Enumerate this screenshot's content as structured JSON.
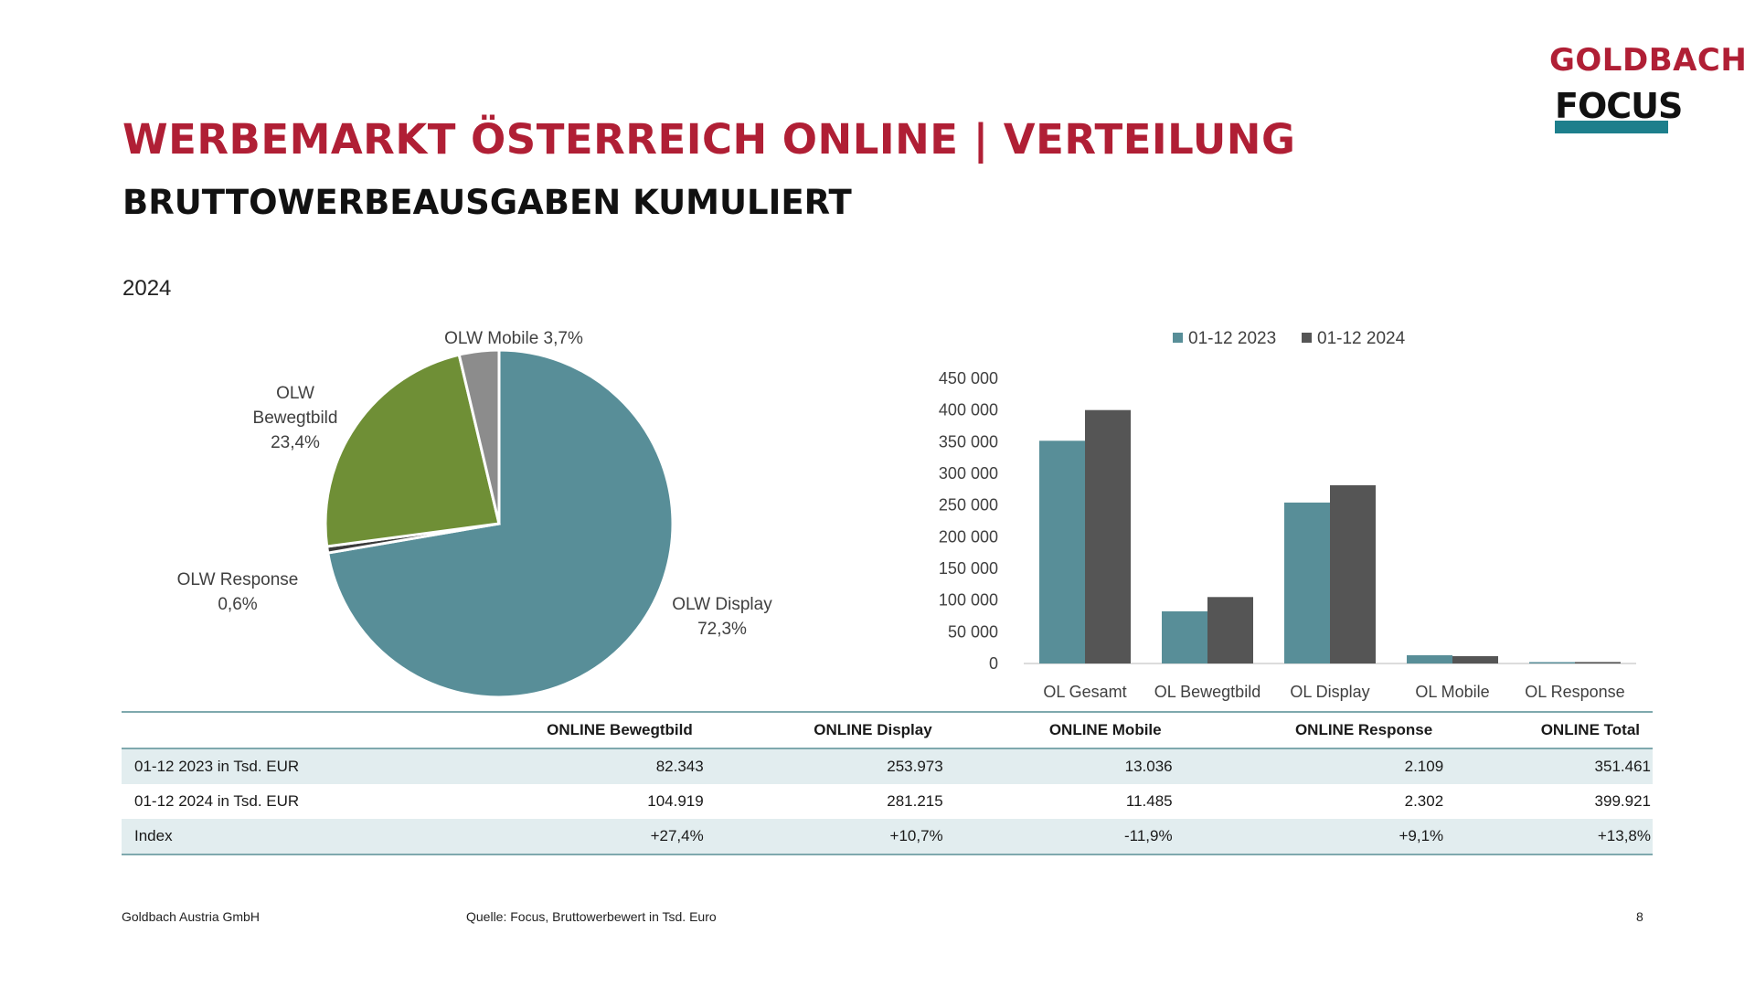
{
  "header": {
    "title": "WERBEMARKT ÖSTERREICH ONLINE | VERTEILUNG",
    "subtitle": "BRUTTOWERBEAUSGABEN KUMULIERT",
    "year": "2024"
  },
  "logo": {
    "top": "GOLDBACH",
    "bottom": "FOCUS",
    "accent": "#b01f35",
    "teal": "#1d7f8c"
  },
  "chart_data": [
    {
      "type": "pie",
      "slices": [
        {
          "label": "OLW Display",
          "value": 72.3,
          "text": "72,3%",
          "color": "#588e98"
        },
        {
          "label": "OLW Response",
          "value": 0.6,
          "text": "0,6%",
          "color": "#3b3b3b"
        },
        {
          "label": "OLW Bewegtbild",
          "value": 23.4,
          "text": "23,4%",
          "color": "#6f8f36"
        },
        {
          "label": "OLW Mobile",
          "value": 3.7,
          "text": "3,7%",
          "color": "#8c8c8c"
        }
      ]
    },
    {
      "type": "bar",
      "categories": [
        "OL Gesamt",
        "OL Bewegtbild",
        "OL Display",
        "OL Mobile",
        "OL Response"
      ],
      "series": [
        {
          "name": "01-12 2023",
          "values": [
            351461,
            82343,
            253973,
            13036,
            2109
          ],
          "color": "#588e98"
        },
        {
          "name": "01-12 2024",
          "values": [
            399921,
            104919,
            281215,
            11485,
            2302
          ],
          "color": "#555555"
        }
      ],
      "ylim": [
        0,
        450000
      ],
      "yticks": [
        0,
        50000,
        100000,
        150000,
        200000,
        250000,
        300000,
        350000,
        400000,
        450000
      ],
      "ytick_labels": [
        "0",
        "50 000",
        "100 000",
        "150 000",
        "200 000",
        "250 000",
        "300 000",
        "350 000",
        "400 000",
        "450 000"
      ],
      "legend": "top",
      "grid": false
    }
  ],
  "table": {
    "headers": [
      "",
      "ONLINE Bewegtbild",
      "ONLINE Display",
      "ONLINE Mobile",
      "ONLINE Response",
      "ONLINE Total"
    ],
    "rows": [
      [
        "01-12 2023 in Tsd. EUR",
        "82.343",
        "253.973",
        "13.036",
        "2.109",
        "351.461"
      ],
      [
        "01-12 2024 in Tsd. EUR",
        "104.919",
        "281.215",
        "11.485",
        "2.302",
        "399.921"
      ],
      [
        "Index",
        "+27,4%",
        "+10,7%",
        "-11,9%",
        "+9,1%",
        "+13,8%"
      ]
    ]
  },
  "footer": {
    "company": "Goldbach Austria GmbH",
    "source": "Quelle: Focus, Bruttowerbewert in Tsd. Euro",
    "page": "8"
  }
}
